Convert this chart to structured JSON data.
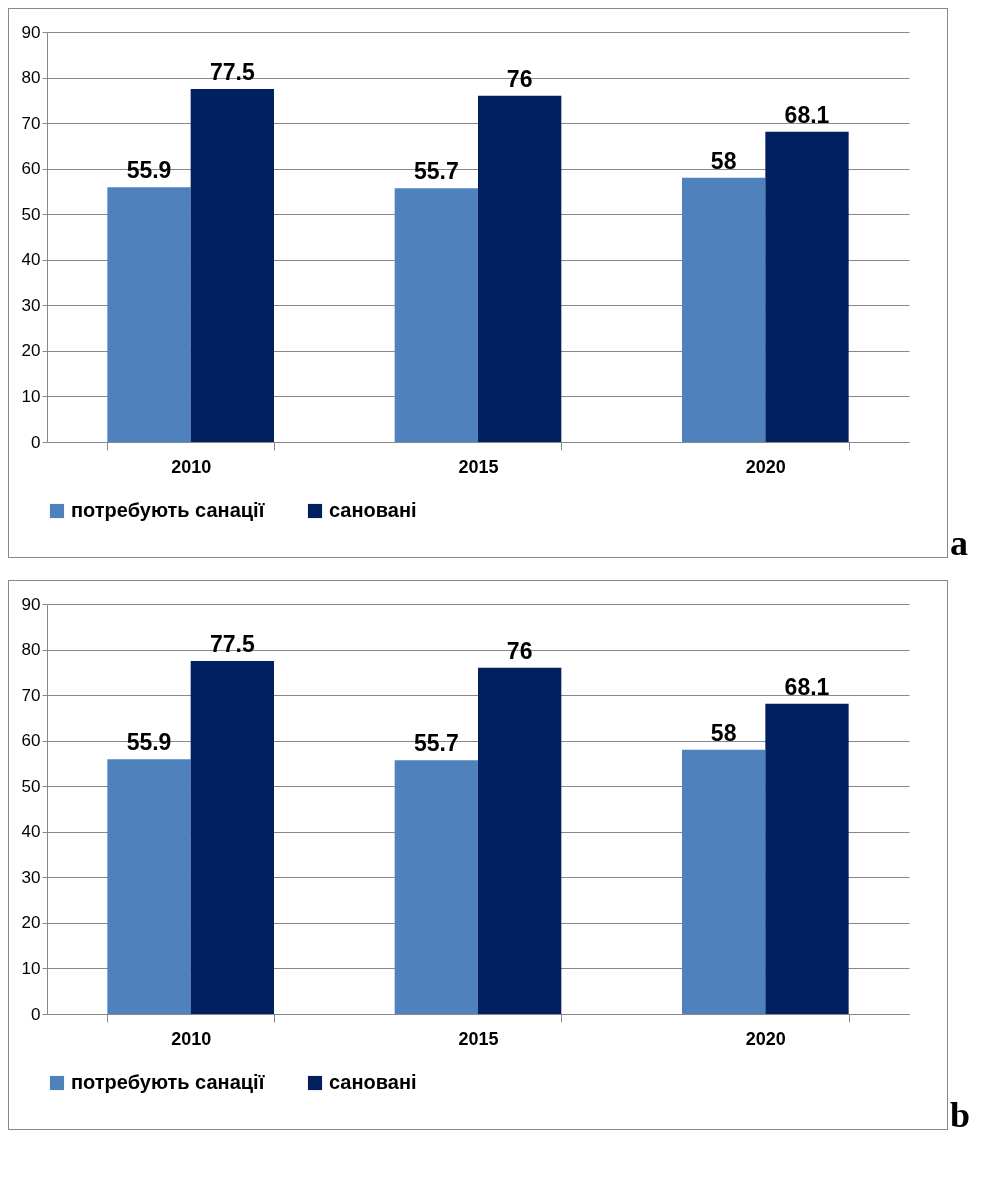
{
  "chart_data": [
    {
      "type": "bar",
      "categories": [
        "2010",
        "2015",
        "2020"
      ],
      "series": [
        {
          "name": "потребують санації",
          "color": "#4f81bd",
          "values": [
            55.9,
            55.7,
            58
          ]
        },
        {
          "name": "сановані",
          "color": "#002060",
          "values": [
            77.5,
            76,
            68.1
          ]
        }
      ],
      "ylim": [
        0,
        90
      ],
      "yticks": [
        0,
        10,
        20,
        30,
        40,
        50,
        60,
        70,
        80,
        90
      ],
      "grid": "y",
      "legend": "bottom",
      "data_labels": true,
      "annotations": [
        "a"
      ]
    },
    {
      "type": "bar",
      "categories": [
        "2010",
        "2015",
        "2020"
      ],
      "series": [
        {
          "name": "потребують санації",
          "color": "#4f81bd",
          "values": [
            55.9,
            55.7,
            58
          ]
        },
        {
          "name": "сановані",
          "color": "#002060",
          "values": [
            77.5,
            76,
            68.1
          ]
        }
      ],
      "ylim": [
        0,
        90
      ],
      "yticks": [
        0,
        10,
        20,
        30,
        40,
        50,
        60,
        70,
        80,
        90
      ],
      "grid": "y",
      "legend": "bottom",
      "data_labels": true,
      "annotations": [
        "b"
      ]
    }
  ]
}
